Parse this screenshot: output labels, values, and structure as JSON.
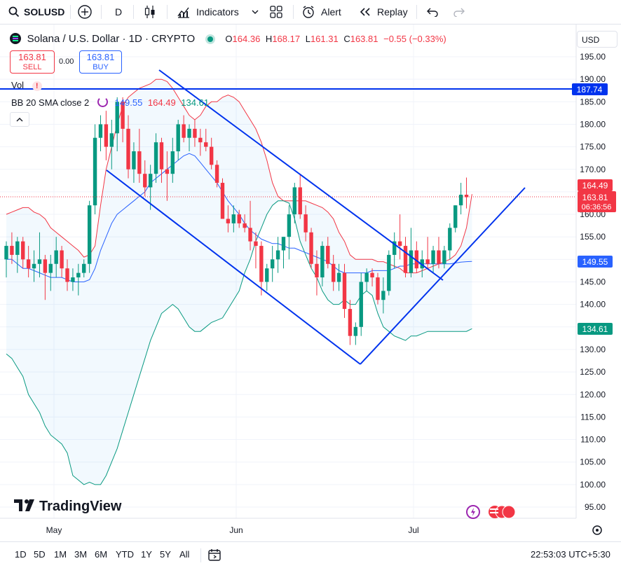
{
  "toolbar": {
    "symbol": "SOLUSD",
    "interval": "D",
    "indicators": "Indicators",
    "alert": "Alert",
    "replay": "Replay"
  },
  "legend": {
    "title": "Solana / U.S. Dollar · 1D · CRYPTO",
    "o_label": "O",
    "o": "164.36",
    "h_label": "H",
    "h": "168.17",
    "l_label": "L",
    "l": "161.31",
    "c_label": "C",
    "c": "163.81",
    "change": "−0.55 (−0.33%)",
    "sell_price": "163.81",
    "sell_label": "SELL",
    "spread": "0.00",
    "buy_price": "163.81",
    "buy_label": "BUY",
    "vol": "Vol",
    "bb_label": "BB 20 SMA close 2",
    "bb_basis": "149.55",
    "bb_upper": "164.49",
    "bb_lower": "134.61"
  },
  "currency": "USD",
  "watermark": "TradingView",
  "time_labels": [
    "May",
    "Jun",
    "Jul"
  ],
  "ranges": [
    "1D",
    "5D",
    "1M",
    "3M",
    "6M",
    "YTD",
    "1Y",
    "5Y",
    "All"
  ],
  "clock": "22:53:03 UTC+5:30",
  "countdown": "06:36:56",
  "colors": {
    "up": "#089981",
    "down": "#f23645",
    "basis": "#2962ff",
    "upper": "#f23645",
    "lower": "#089981",
    "line": "#0033ee"
  },
  "chart_data": {
    "type": "candlestick",
    "title": "Solana / U.S. Dollar · 1D · CRYPTO",
    "ylim": [
      92,
      197
    ],
    "y_ticks": [
      95,
      100,
      105,
      110,
      115,
      120,
      125,
      130,
      135,
      140,
      145,
      150,
      155,
      160,
      165,
      170,
      175,
      180,
      185,
      190,
      195
    ],
    "x_ticks": [
      "May",
      "Jun",
      "Jul"
    ],
    "candles": [
      {
        "o": 150,
        "h": 154,
        "l": 146,
        "c": 153
      },
      {
        "o": 153,
        "h": 156,
        "l": 149,
        "c": 151
      },
      {
        "o": 151,
        "h": 155,
        "l": 147,
        "c": 154
      },
      {
        "o": 154,
        "h": 155,
        "l": 148,
        "c": 150
      },
      {
        "o": 150,
        "h": 153,
        "l": 146,
        "c": 148
      },
      {
        "o": 148,
        "h": 152,
        "l": 145,
        "c": 149
      },
      {
        "o": 149,
        "h": 156,
        "l": 146,
        "c": 150
      },
      {
        "o": 150,
        "h": 151,
        "l": 141,
        "c": 147
      },
      {
        "o": 147,
        "h": 151,
        "l": 143,
        "c": 149
      },
      {
        "o": 149,
        "h": 155,
        "l": 146,
        "c": 152
      },
      {
        "o": 152,
        "h": 153,
        "l": 146,
        "c": 148
      },
      {
        "o": 148,
        "h": 150,
        "l": 143,
        "c": 145
      },
      {
        "o": 145,
        "h": 148,
        "l": 143,
        "c": 146
      },
      {
        "o": 146,
        "h": 149,
        "l": 142,
        "c": 147
      },
      {
        "o": 147,
        "h": 150,
        "l": 146,
        "c": 149
      },
      {
        "o": 149,
        "h": 163,
        "l": 147,
        "c": 162
      },
      {
        "o": 162,
        "h": 180,
        "l": 160,
        "c": 177
      },
      {
        "o": 177,
        "h": 182,
        "l": 174,
        "c": 180
      },
      {
        "o": 180,
        "h": 183,
        "l": 172,
        "c": 175
      },
      {
        "o": 175,
        "h": 181,
        "l": 170,
        "c": 178
      },
      {
        "o": 178,
        "h": 186,
        "l": 174,
        "c": 185
      },
      {
        "o": 185,
        "h": 186,
        "l": 176,
        "c": 179
      },
      {
        "o": 179,
        "h": 182,
        "l": 168,
        "c": 170
      },
      {
        "o": 170,
        "h": 176,
        "l": 167,
        "c": 174
      },
      {
        "o": 174,
        "h": 179,
        "l": 167,
        "c": 169
      },
      {
        "o": 169,
        "h": 172,
        "l": 164,
        "c": 166
      },
      {
        "o": 166,
        "h": 171,
        "l": 161,
        "c": 169
      },
      {
        "o": 169,
        "h": 178,
        "l": 167,
        "c": 176
      },
      {
        "o": 176,
        "h": 177,
        "l": 167,
        "c": 170
      },
      {
        "o": 170,
        "h": 174,
        "l": 163,
        "c": 169
      },
      {
        "o": 169,
        "h": 177,
        "l": 167,
        "c": 174
      },
      {
        "o": 174,
        "h": 181,
        "l": 172,
        "c": 180
      },
      {
        "o": 180,
        "h": 182,
        "l": 176,
        "c": 177
      },
      {
        "o": 177,
        "h": 180,
        "l": 174,
        "c": 179
      },
      {
        "o": 179,
        "h": 181,
        "l": 175,
        "c": 177
      },
      {
        "o": 177,
        "h": 179,
        "l": 173,
        "c": 176
      },
      {
        "o": 176,
        "h": 179,
        "l": 174,
        "c": 175
      },
      {
        "o": 175,
        "h": 177,
        "l": 170,
        "c": 171
      },
      {
        "o": 171,
        "h": 172,
        "l": 166,
        "c": 167
      },
      {
        "o": 167,
        "h": 168,
        "l": 159,
        "c": 159
      },
      {
        "o": 159,
        "h": 162,
        "l": 156,
        "c": 158
      },
      {
        "o": 158,
        "h": 162,
        "l": 156,
        "c": 160
      },
      {
        "o": 160,
        "h": 161,
        "l": 157,
        "c": 158
      },
      {
        "o": 158,
        "h": 160,
        "l": 156,
        "c": 157
      },
      {
        "o": 157,
        "h": 163,
        "l": 152,
        "c": 154
      },
      {
        "o": 154,
        "h": 156,
        "l": 148,
        "c": 153
      },
      {
        "o": 153,
        "h": 154,
        "l": 142,
        "c": 145
      },
      {
        "o": 145,
        "h": 149,
        "l": 143,
        "c": 148
      },
      {
        "o": 148,
        "h": 153,
        "l": 145,
        "c": 150
      },
      {
        "o": 150,
        "h": 155,
        "l": 147,
        "c": 152
      },
      {
        "o": 152,
        "h": 155,
        "l": 148,
        "c": 155
      },
      {
        "o": 155,
        "h": 162,
        "l": 150,
        "c": 160
      },
      {
        "o": 160,
        "h": 167,
        "l": 158,
        "c": 166
      },
      {
        "o": 166,
        "h": 169,
        "l": 159,
        "c": 160
      },
      {
        "o": 160,
        "h": 162,
        "l": 154,
        "c": 156
      },
      {
        "o": 156,
        "h": 157,
        "l": 148,
        "c": 149
      },
      {
        "o": 149,
        "h": 152,
        "l": 142,
        "c": 146
      },
      {
        "o": 146,
        "h": 154,
        "l": 144,
        "c": 153
      },
      {
        "o": 153,
        "h": 155,
        "l": 148,
        "c": 149
      },
      {
        "o": 149,
        "h": 151,
        "l": 143,
        "c": 145
      },
      {
        "o": 145,
        "h": 149,
        "l": 143,
        "c": 147
      },
      {
        "o": 147,
        "h": 149,
        "l": 137,
        "c": 139
      },
      {
        "o": 139,
        "h": 141,
        "l": 131,
        "c": 133
      },
      {
        "o": 133,
        "h": 136,
        "l": 131,
        "c": 135
      },
      {
        "o": 135,
        "h": 147,
        "l": 133,
        "c": 145
      },
      {
        "o": 145,
        "h": 148,
        "l": 143,
        "c": 147
      },
      {
        "o": 147,
        "h": 148,
        "l": 144,
        "c": 146
      },
      {
        "o": 146,
        "h": 147,
        "l": 140,
        "c": 141
      },
      {
        "o": 141,
        "h": 146,
        "l": 138,
        "c": 143
      },
      {
        "o": 143,
        "h": 152,
        "l": 142,
        "c": 151
      },
      {
        "o": 151,
        "h": 156,
        "l": 148,
        "c": 154
      },
      {
        "o": 154,
        "h": 160,
        "l": 150,
        "c": 153
      },
      {
        "o": 153,
        "h": 155,
        "l": 146,
        "c": 147
      },
      {
        "o": 147,
        "h": 157,
        "l": 146,
        "c": 152
      },
      {
        "o": 152,
        "h": 154,
        "l": 147,
        "c": 148
      },
      {
        "o": 148,
        "h": 152,
        "l": 146,
        "c": 150
      },
      {
        "o": 150,
        "h": 155,
        "l": 148,
        "c": 149
      },
      {
        "o": 149,
        "h": 153,
        "l": 147,
        "c": 152
      },
      {
        "o": 152,
        "h": 155,
        "l": 148,
        "c": 149
      },
      {
        "o": 149,
        "h": 153,
        "l": 148,
        "c": 152
      },
      {
        "o": 152,
        "h": 158,
        "l": 150,
        "c": 157
      },
      {
        "o": 157,
        "h": 162,
        "l": 156,
        "c": 162
      },
      {
        "o": 162,
        "h": 167,
        "l": 160,
        "c": 164.36
      },
      {
        "o": 164.36,
        "h": 168.17,
        "l": 161.31,
        "c": 163.81
      }
    ],
    "bb_upper": [
      160,
      160.5,
      161,
      161.5,
      161.5,
      160.5,
      160,
      159,
      157,
      156,
      155,
      154,
      153,
      152,
      150.5,
      151,
      153,
      162,
      170,
      175,
      180,
      184,
      186,
      187,
      188,
      188.5,
      189,
      190,
      190,
      189.5,
      188,
      186,
      184,
      182,
      181,
      182,
      184,
      185,
      185,
      186,
      186.5,
      186,
      185,
      183,
      181,
      179,
      176,
      172,
      167,
      164,
      163,
      163,
      163,
      163,
      163,
      162.5,
      162,
      161.5,
      160.5,
      159,
      156,
      154,
      151,
      150,
      150,
      150,
      150,
      149.5,
      149.5,
      149,
      148.5,
      148,
      147,
      147,
      147,
      147.5,
      148,
      148.5,
      149,
      149.5,
      150,
      151,
      153,
      157,
      164.49
    ],
    "bb_basis": [
      150,
      150,
      149,
      148,
      148,
      147.5,
      147,
      146.5,
      146,
      146,
      146,
      145.5,
      145,
      145,
      145,
      145.5,
      148,
      152,
      155,
      158,
      160,
      161,
      162,
      163,
      164,
      165,
      167,
      168,
      169,
      170,
      171,
      172,
      173,
      173.5,
      173,
      171.5,
      170,
      168.5,
      167,
      165,
      163,
      161.5,
      160,
      158,
      156.5,
      155.5,
      154.5,
      154,
      153.5,
      153.5,
      153,
      152.5,
      152.5,
      152,
      151.5,
      151,
      150.5,
      150,
      149.5,
      148.5,
      147.5,
      147,
      147,
      147,
      147,
      147,
      147.5,
      147.5,
      147.5,
      147.5,
      148,
      148.5,
      148.5,
      149,
      149,
      149,
      149,
      149,
      149,
      149,
      149,
      149.2,
      149.4,
      149.5,
      149.55
    ],
    "bb_lower": [
      129,
      128,
      126,
      124,
      120,
      118,
      116,
      113,
      111,
      110,
      109,
      107,
      102,
      101,
      100,
      100.5,
      100,
      100,
      102,
      105,
      108,
      112,
      116,
      120,
      124,
      128,
      132,
      135,
      138,
      139,
      140,
      139,
      137,
      135,
      134,
      134,
      135,
      136,
      136.5,
      137,
      139,
      141,
      143,
      147,
      150,
      154,
      157,
      160,
      162,
      163,
      163,
      162.5,
      159,
      154,
      151,
      148,
      146,
      143,
      141,
      140,
      140,
      141,
      140,
      140,
      142,
      143,
      142,
      138,
      135,
      134,
      133,
      132.5,
      132,
      133,
      133,
      133.5,
      134,
      134,
      134,
      134,
      134,
      134,
      134,
      134,
      134.61
    ],
    "horizontal_lines": [
      187.74
    ],
    "price_labels": [
      "187.74",
      "164.49",
      "163.81",
      "149.55",
      "134.61"
    ]
  }
}
